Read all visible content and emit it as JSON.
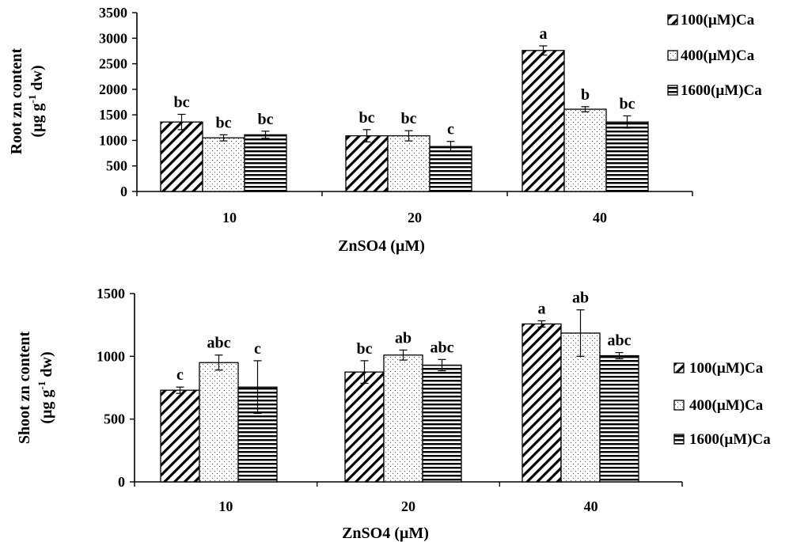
{
  "colors": {
    "bar_fill": "#ffffff",
    "ink": "#000000",
    "background": "#ffffff"
  },
  "chart_data": [
    {
      "type": "bar",
      "ylabel": "Root zn content",
      "ylabel_unit": "(µg g",
      "ylabel_unit_sup": "-1",
      "ylabel_unit_tail": " dw)",
      "xlabel": "ZnSO4 (µM)",
      "ylim": [
        0,
        3500
      ],
      "yticks": [
        0,
        500,
        1000,
        1500,
        2000,
        2500,
        3000,
        3500
      ],
      "grid": false,
      "legend_position": "right",
      "categories": [
        "10",
        "20",
        "40"
      ],
      "series": [
        {
          "name": "100(µM)Ca",
          "pattern": "diagonal",
          "values": [
            1360,
            1090,
            2760
          ],
          "errors": [
            150,
            120,
            90
          ],
          "labels": [
            "bc",
            "bc",
            "a"
          ]
        },
        {
          "name": "400(µM)Ca",
          "pattern": "dotted",
          "values": [
            1050,
            1090,
            1610
          ],
          "errors": [
            60,
            100,
            50
          ],
          "labels": [
            "bc",
            "bc",
            "b"
          ]
        },
        {
          "name": "1600(µM)Ca",
          "pattern": "horizontal",
          "values": [
            1110,
            880,
            1360
          ],
          "errors": [
            70,
            100,
            120
          ],
          "labels": [
            "bc",
            "c",
            "bc"
          ]
        }
      ]
    },
    {
      "type": "bar",
      "ylabel": "Shoot zn content",
      "ylabel_unit": "(µg g",
      "ylabel_unit_sup": "-1",
      "ylabel_unit_tail": " dw)",
      "xlabel": "ZnSO4 (µM)",
      "ylim": [
        0,
        1500
      ],
      "yticks": [
        0,
        500,
        1000,
        1500
      ],
      "grid": false,
      "legend_position": "right",
      "categories": [
        "10",
        "20",
        "40"
      ],
      "series": [
        {
          "name": "100(µM)Ca",
          "pattern": "diagonal",
          "values": [
            730,
            875,
            1258
          ],
          "errors": [
            25,
            90,
            25
          ],
          "labels": [
            "c",
            "bc",
            "a"
          ]
        },
        {
          "name": "400(µM)Ca",
          "pattern": "dotted",
          "values": [
            950,
            1010,
            1185
          ],
          "errors": [
            60,
            40,
            185
          ],
          "labels": [
            "abc",
            "ab",
            "ab"
          ]
        },
        {
          "name": "1600(µM)Ca",
          "pattern": "horizontal",
          "values": [
            755,
            930,
            1005
          ],
          "errors": [
            210,
            45,
            25
          ],
          "labels": [
            "c",
            "abc",
            "abc"
          ]
        }
      ]
    }
  ]
}
